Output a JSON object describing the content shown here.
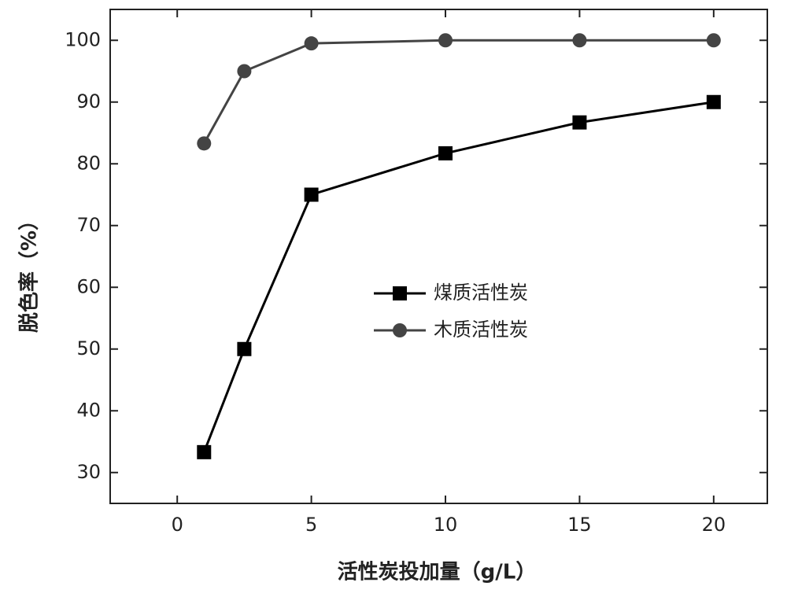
{
  "chart_data": {
    "type": "line",
    "x_label": "活性炭投加量（g/L）",
    "y_label": "脱色率（%）",
    "x": [
      1,
      2.5,
      5,
      10,
      15,
      20
    ],
    "series": [
      {
        "name": "煤质活性炭",
        "color": "#000000",
        "marker": "square",
        "values": [
          33.3,
          50,
          75,
          81.7,
          86.7,
          90
        ]
      },
      {
        "name": "木质活性炭",
        "color": "#444444",
        "marker": "circle",
        "values": [
          83.3,
          95,
          99.5,
          100,
          100,
          100
        ]
      }
    ],
    "xlim": [
      -2.5,
      22
    ],
    "xticks": [
      0,
      5,
      10,
      15,
      20
    ],
    "ylim": [
      25,
      105
    ],
    "yticks": [
      30,
      40,
      50,
      60,
      70,
      80,
      90,
      100
    ],
    "grid": false,
    "legend": "center"
  }
}
